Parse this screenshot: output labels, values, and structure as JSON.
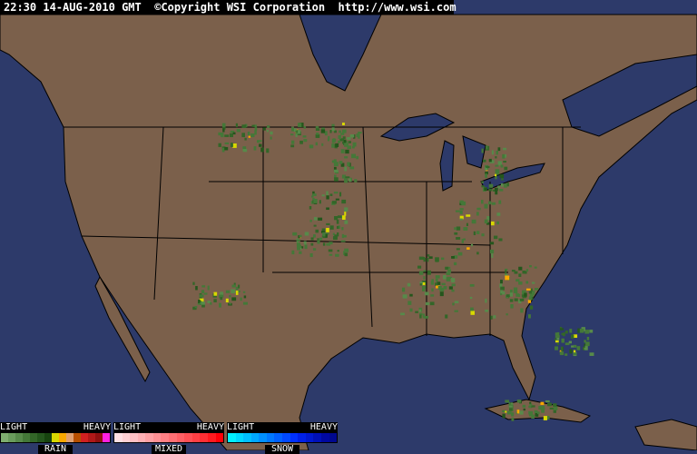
{
  "header": {
    "time": "22:30",
    "date": "14-AUG-2010",
    "zone": "GMT",
    "copyright": "©Copyright WSI Corporation",
    "url": "http://www.wsi.com"
  },
  "colors": {
    "ocean": "#2d3a6a",
    "land": "#7b604b",
    "border": "#000000"
  },
  "legend": [
    {
      "name": "RAIN",
      "light": "LIGHT",
      "heavy": "HEAVY",
      "colors": [
        "#7fae6f",
        "#6a9c5c",
        "#578a4a",
        "#447838",
        "#336628",
        "#24561c",
        "#17440f",
        "#d8d800",
        "#f8a800",
        "#e0a070",
        "#b85000",
        "#d02020",
        "#b01818",
        "#901010",
        "#ff20e0"
      ]
    },
    {
      "name": "MIXED",
      "light": "LIGHT",
      "heavy": "HEAVY",
      "colors": [
        "#ffe0e4",
        "#ffd0d4",
        "#ffc0c4",
        "#ffb0b4",
        "#ffa0a4",
        "#ff9094",
        "#ff7f84",
        "#ff6f74",
        "#ff5f64",
        "#ff4f54",
        "#ff3f44",
        "#ff2f34",
        "#ff1a1f",
        "#ff0008"
      ]
    },
    {
      "name": "SNOW",
      "light": "LIGHT",
      "heavy": "HEAVY",
      "colors": [
        "#00f0ff",
        "#00d8ff",
        "#00c0ff",
        "#00a8ff",
        "#0090ff",
        "#0078ff",
        "#0060ff",
        "#0048ff",
        "#0030ff",
        "#0020e8",
        "#0018d0",
        "#0010b8",
        "#0008a0",
        "#000890"
      ]
    }
  ]
}
